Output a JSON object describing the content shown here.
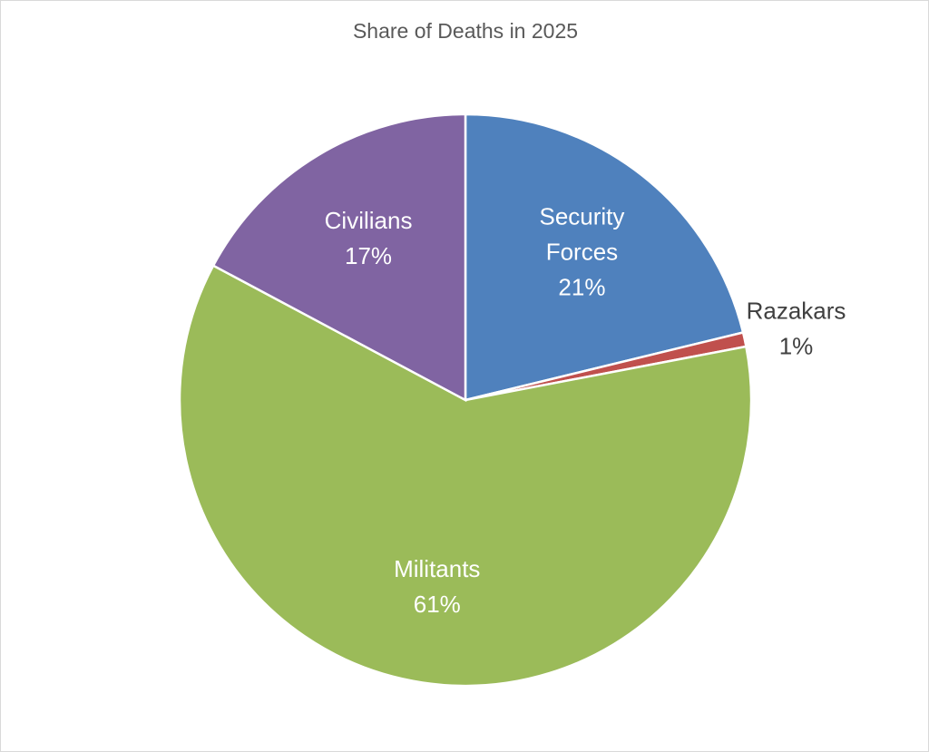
{
  "chart_data": {
    "type": "pie",
    "title": "Share of Deaths in 2025",
    "legend": "none",
    "slices": [
      {
        "label": "Security Forces",
        "label_lines": [
          "Security",
          "Forces"
        ],
        "percent_label": "21%",
        "value": 21.2,
        "color": "#4F81BD",
        "label_placement": "inside"
      },
      {
        "label": "Razakars",
        "label_lines": [
          "Razakars"
        ],
        "percent_label": "1%",
        "value": 0.8,
        "color": "#C0504D",
        "label_placement": "outside"
      },
      {
        "label": "Militants",
        "label_lines": [
          "Militants"
        ],
        "percent_label": "61%",
        "value": 60.8,
        "color": "#9BBB59",
        "label_placement": "inside"
      },
      {
        "label": "Civilians",
        "label_lines": [
          "Civilians"
        ],
        "percent_label": "17%",
        "value": 17.2,
        "color": "#8064A2",
        "label_placement": "inside"
      }
    ]
  }
}
